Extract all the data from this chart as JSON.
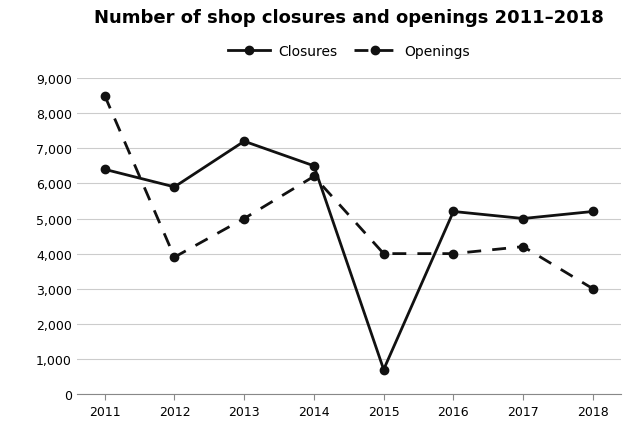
{
  "title": "Number of shop closures and openings 2011–2018",
  "years": [
    2011,
    2012,
    2013,
    2014,
    2015,
    2016,
    2017,
    2018
  ],
  "closures": [
    6400,
    5900,
    7200,
    6500,
    700,
    5200,
    5000,
    5200
  ],
  "openings": [
    8500,
    3900,
    5000,
    6200,
    4000,
    4000,
    4200,
    3000
  ],
  "ylim": [
    0,
    9000
  ],
  "yticks": [
    0,
    1000,
    2000,
    3000,
    4000,
    5000,
    6000,
    7000,
    8000,
    9000
  ],
  "line_color": "#111111",
  "marker": "o",
  "marker_size": 6,
  "legend_labels": [
    "Closures",
    "Openings"
  ],
  "title_fontsize": 13,
  "tick_fontsize": 9,
  "legend_fontsize": 10,
  "background_color": "#ffffff",
  "grid_color": "#cccccc"
}
